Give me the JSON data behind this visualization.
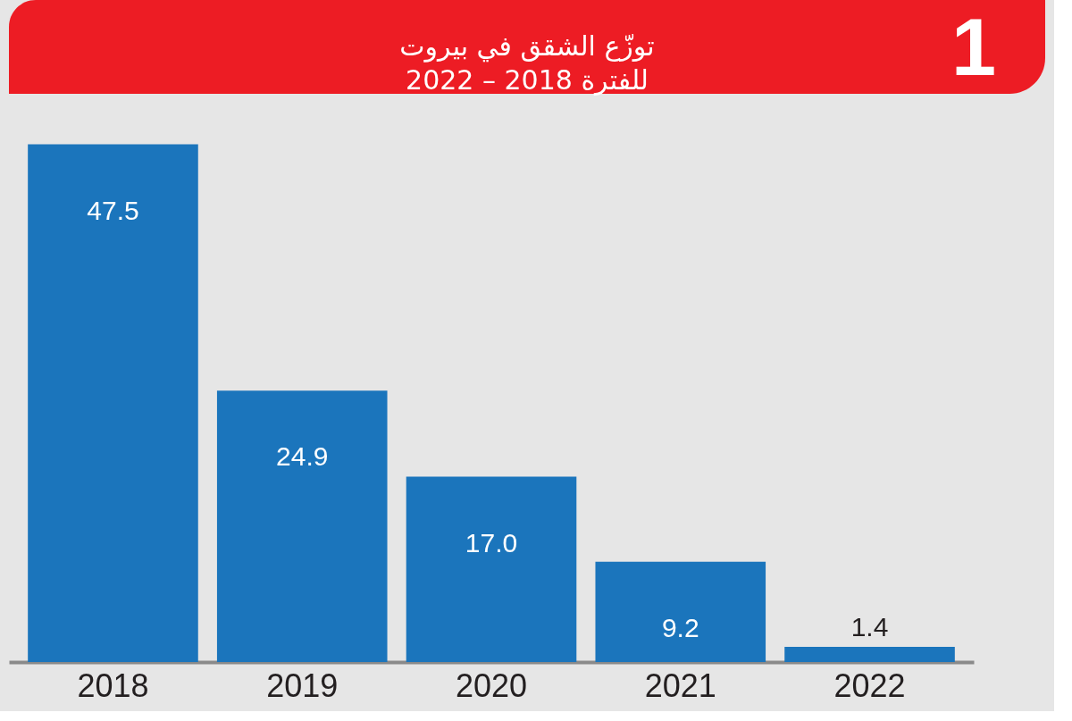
{
  "chart_data": {
    "type": "bar",
    "title": "توزّع الشقق في بيروت\nللفترة 2018 – 2022",
    "annotations": [
      "1"
    ],
    "categories": [
      "2018",
      "2019",
      "2020",
      "2021",
      "2022"
    ],
    "values": [
      47.5,
      24.9,
      17.0,
      9.2,
      1.4
    ],
    "value_labels": [
      "47.5",
      "24.9",
      "17.0",
      "9.2",
      "1.4"
    ],
    "color": "#1b75bc"
  }
}
